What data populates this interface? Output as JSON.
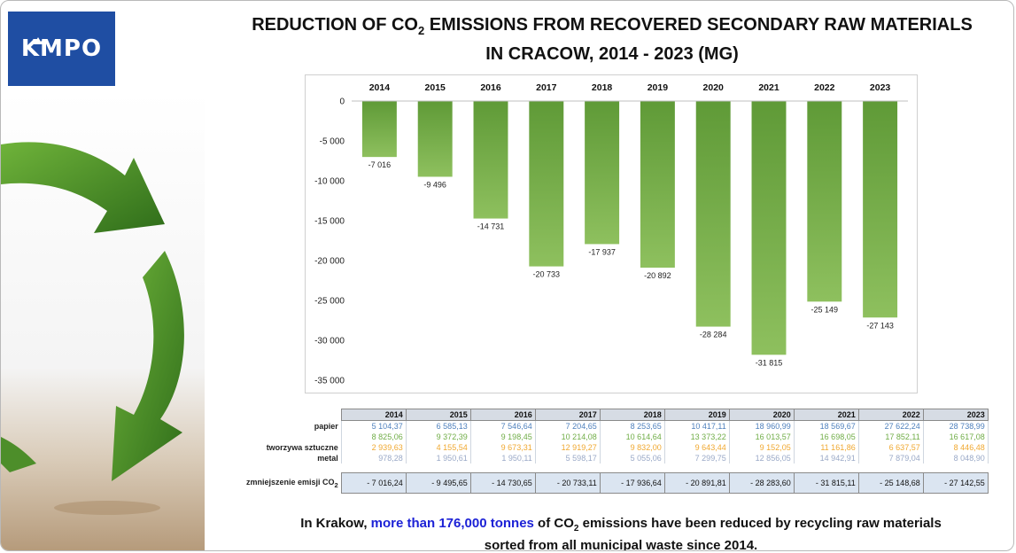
{
  "logo_text": "KMPO",
  "title_line1_pre": "REDUCTION OF CO",
  "title_line1_sub": "2",
  "title_line1_post": " EMISSIONS FROM RECOVERED SECONDARY RAW MATERIALS",
  "title_line2": "IN CRACOW, 2014 - 2023 (MG)",
  "colors": {
    "bar_top": "#5f9a37",
    "bar_bottom": "#8ec05e",
    "logo_bg": "#1f4ea3",
    "highlight": "#1d22d6"
  },
  "chart_data": {
    "type": "bar",
    "categories": [
      "2014",
      "2015",
      "2016",
      "2017",
      "2018",
      "2019",
      "2020",
      "2021",
      "2022",
      "2023"
    ],
    "values": [
      -7016,
      -9496,
      -14731,
      -20733,
      -17937,
      -20892,
      -28284,
      -31815,
      -25149,
      -27143
    ],
    "value_labels": [
      "-7 016",
      "-9 496",
      "-14 731",
      "-20 733",
      "-17 937",
      "-20 892",
      "-28 284",
      "-31 815",
      "-25 149",
      "-27 143"
    ],
    "ylim": [
      -35000,
      0
    ],
    "yticks": [
      0,
      -5000,
      -10000,
      -15000,
      -20000,
      -25000,
      -30000,
      -35000
    ],
    "ytick_labels": [
      "0",
      "-5 000",
      "-10 000",
      "-15 000",
      "-20 000",
      "-25 000",
      "-30 000",
      "-35 000"
    ],
    "categories_position": "top",
    "grid": false
  },
  "table": {
    "years": [
      "2014",
      "2015",
      "2016",
      "2017",
      "2018",
      "2019",
      "2020",
      "2021",
      "2022",
      "2023"
    ],
    "rows": [
      {
        "label": "papier",
        "color": "#4f81bd",
        "values": [
          "5 104,37",
          "6 585,13",
          "7 546,64",
          "7 204,65",
          "8 253,65",
          "10 417,11",
          "18 960,99",
          "18 569,67",
          "27 622,24",
          "28 738,99"
        ]
      },
      {
        "label": "",
        "color": "#70ad47",
        "values": [
          "8 825,06",
          "9 372,39",
          "9 198,45",
          "10 214,08",
          "10 614,64",
          "13 373,22",
          "16 013,57",
          "16 698,05",
          "17 852,11",
          "16 617,08"
        ]
      },
      {
        "label": "tworzywa sztuczne",
        "color": "#f0a830",
        "values": [
          "2 939,63",
          "4 155,54",
          "9 673,31",
          "12 919,27",
          "9 832,00",
          "9 643,44",
          "9 152,05",
          "11 161,86",
          "6 637,57",
          "8 446,48"
        ]
      },
      {
        "label": "metal",
        "color": "#9aa9c7",
        "values": [
          "978,28",
          "1 950,61",
          "1 950,11",
          "5 598,17",
          "5 055,06",
          "7 299,75",
          "12 856,05",
          "14 942,91",
          "7 879,04",
          "8 048,90"
        ]
      }
    ],
    "total": {
      "label_pre": "zmniejszenie emisji CO",
      "label_sub": "2",
      "values": [
        "- 7 016,24",
        "- 9 495,65",
        "- 14 730,65",
        "- 20 733,11",
        "- 17 936,64",
        "- 20 891,81",
        "- 28 283,60",
        "- 31 815,11",
        "- 25 148,68",
        "- 27 142,55"
      ]
    }
  },
  "footer": {
    "pre": "In Krakow, ",
    "highlight": "more than 176,000 tonnes",
    "mid": " of CO",
    "sub": "2",
    "post_line1": " emissions have been reduced by recycling raw materials",
    "line2": "sorted from all municipal waste since 2014."
  }
}
